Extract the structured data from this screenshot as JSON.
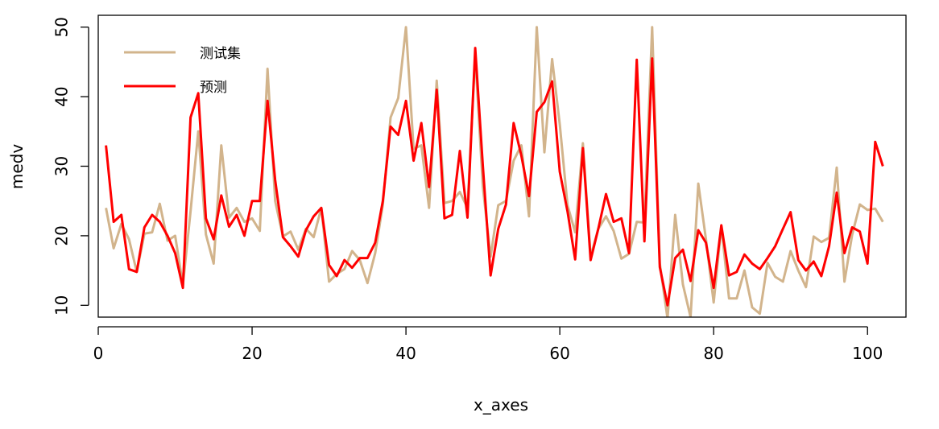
{
  "chart_data": {
    "type": "line",
    "xlabel": "x_axes",
    "ylabel": "medv",
    "xlim": [
      0,
      105
    ],
    "ylim": [
      8.3,
      51.7
    ],
    "xticks": [
      0,
      20,
      40,
      60,
      80,
      100
    ],
    "yticks": [
      10,
      20,
      30,
      40,
      50
    ],
    "legend_position": "top-left",
    "grid": false,
    "series": [
      {
        "name": "测试集",
        "color": "#D2B48C",
        "x": [
          1,
          2,
          3,
          4,
          5,
          6,
          7,
          8,
          9,
          10,
          11,
          12,
          13,
          14,
          15,
          16,
          17,
          18,
          19,
          20,
          21,
          22,
          23,
          24,
          25,
          26,
          27,
          28,
          29,
          30,
          31,
          32,
          33,
          34,
          35,
          36,
          37,
          38,
          39,
          40,
          41,
          42,
          43,
          44,
          45,
          46,
          47,
          48,
          49,
          50,
          51,
          52,
          53,
          54,
          55,
          56,
          57,
          58,
          59,
          60,
          61,
          62,
          63,
          64,
          65,
          66,
          67,
          68,
          69,
          70,
          71,
          72,
          73,
          74,
          75,
          76,
          77,
          78,
          79,
          80,
          81,
          82,
          83,
          84,
          85,
          86,
          87,
          88,
          89,
          90,
          91,
          92,
          93,
          94,
          95,
          96,
          97,
          98,
          99,
          100,
          101,
          102
        ],
        "values": [
          24,
          18.2,
          21.7,
          19.5,
          14.8,
          20.3,
          20.5,
          24.6,
          19.3,
          20,
          12.9,
          23.5,
          35,
          20.2,
          16,
          33,
          22.6,
          24,
          22,
          22.5,
          20.7,
          44,
          25,
          19.9,
          20.6,
          18,
          21,
          19.8,
          24,
          13.4,
          14.5,
          15.2,
          17.8,
          16.5,
          13.2,
          17.5,
          24.5,
          37,
          39.8,
          50,
          32.5,
          33,
          24,
          42.3,
          24.7,
          25,
          26.3,
          24,
          46,
          27,
          17,
          24.4,
          25,
          30.8,
          33,
          22.8,
          50,
          32,
          45.4,
          36,
          24.4,
          20.5,
          33.3,
          17,
          21,
          22.8,
          20.7,
          16.7,
          17.4,
          22,
          21.9,
          50,
          16,
          8.1,
          23,
          13,
          8.3,
          27.5,
          19.5,
          10.4,
          21.4,
          11,
          11,
          15,
          9.7,
          8.8,
          16.1,
          14.1,
          13.4,
          17.8,
          15,
          12.6,
          19.9,
          19.1,
          19.7,
          29.8,
          13.4,
          20.1,
          24.5,
          23.7,
          23.9,
          22
        ]
      },
      {
        "name": "预测",
        "color": "#FF0000",
        "x": [
          1,
          2,
          3,
          4,
          5,
          6,
          7,
          8,
          9,
          10,
          11,
          12,
          13,
          14,
          15,
          16,
          17,
          18,
          19,
          20,
          21,
          22,
          23,
          24,
          25,
          26,
          27,
          28,
          29,
          30,
          31,
          32,
          33,
          34,
          35,
          36,
          37,
          38,
          39,
          40,
          41,
          42,
          43,
          44,
          45,
          46,
          47,
          48,
          49,
          50,
          51,
          52,
          53,
          54,
          55,
          56,
          57,
          58,
          59,
          60,
          61,
          62,
          63,
          64,
          65,
          66,
          67,
          68,
          69,
          70,
          71,
          72,
          73,
          74,
          75,
          76,
          77,
          78,
          79,
          80,
          81,
          82,
          83,
          84,
          85,
          86,
          87,
          88,
          89,
          90,
          91,
          92,
          93,
          94,
          95,
          96,
          97,
          98,
          99,
          100,
          101,
          102
        ],
        "values": [
          33,
          22,
          23,
          15.2,
          14.8,
          21.2,
          23,
          22,
          20,
          17.5,
          12.5,
          37,
          40.5,
          22.5,
          19.5,
          25.8,
          21.3,
          23,
          20,
          25,
          25,
          39.4,
          28,
          19.8,
          18.5,
          17,
          20.8,
          22.8,
          24,
          15.8,
          14.2,
          16.5,
          15.4,
          16.8,
          16.8,
          19,
          25,
          35.7,
          34.5,
          39.4,
          30.8,
          36.2,
          27,
          41,
          22.5,
          23,
          32.2,
          22.6,
          47,
          30,
          14.3,
          21,
          24.5,
          36.2,
          31.5,
          25.7,
          37.8,
          39.2,
          42.2,
          29.2,
          23.5,
          16.6,
          32.6,
          16.5,
          21,
          26,
          22,
          22.5,
          17.5,
          45.3,
          19.2,
          45.5,
          15.5,
          10,
          16.8,
          18,
          13.5,
          20.8,
          19,
          12.5,
          21.5,
          14.3,
          14.8,
          17.3,
          16,
          15.2,
          16.8,
          18.5,
          21,
          23.4,
          16.5,
          15,
          16.3,
          14.2,
          18.5,
          26.2,
          17.5,
          21.2,
          20.6,
          16,
          33.5,
          30
        ]
      }
    ]
  }
}
